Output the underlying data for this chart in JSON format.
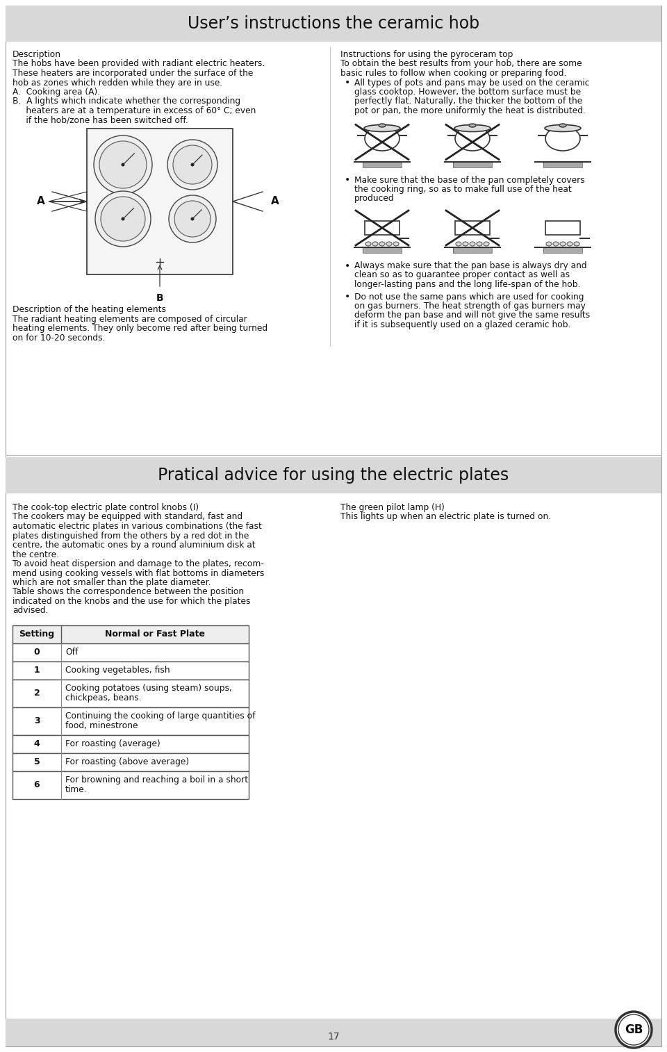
{
  "title1": "User’s instructions the ceramic hob",
  "title2": "Pratical advice for using the electric plates",
  "header_bg": "#d8d8d8",
  "page_bg": "#ffffff",
  "section1_left": {
    "description_title": "Description",
    "description_line1": "The hobs have been provided with radiant electric heaters.",
    "description_line2": "These heaters are incorporated under the surface of the",
    "description_line3": "hob as zones which redden while they are in use.",
    "item_a": "A.  Cooking area (A).",
    "item_b_line1": "B.  A lights which indicate whether the corresponding",
    "item_b_line2": "     heaters are at a temperature in excess of 60° C; even",
    "item_b_line3": "     if the hob/zone has been switched off.",
    "desc_heating_title": "Description of the heating elements",
    "desc_heating_line1": "The radiant heating elements are composed of circular",
    "desc_heating_line2": "heating elements. They only become red after being turned",
    "desc_heating_line3": "on for 10-20 seconds."
  },
  "section1_right": {
    "pyroceram_title": "Instructions for using the pyroceram top",
    "pyroceram_line1": "To obtain the best results from your hob, there are some",
    "pyroceram_line2": "basic rules to follow when cooking or preparing food.",
    "bullet1_line1": "All types of pots and pans may be used on the ceramic",
    "bullet1_line2": "glass cooktop. However, the bottom surface must be",
    "bullet1_line3": "perfectly flat. Naturally, the thicker the bottom of the",
    "bullet1_line4": "pot or pan, the more uniformly the heat is distributed.",
    "bullet2_line1": "Make sure that the base of the pan completely covers",
    "bullet2_line2": "the cooking ring, so as to make full use of the heat",
    "bullet2_line3": "produced",
    "bullet3_line1": "Always make sure that the pan base is always dry and",
    "bullet3_line2": "clean so as to guarantee proper contact as well as",
    "bullet3_line3": "longer-lasting pans and the long life-span of the hob.",
    "bullet4_line1": "Do not use the same pans which are used for cooking",
    "bullet4_line2": "on gas burners. The heat strength of gas burners may",
    "bullet4_line3": "deform the pan base and will not give the same results",
    "bullet4_line4": "if it is subsequently used on a glazed ceramic hob."
  },
  "section2_left": {
    "control_title": "The cook-top electric plate control knobs (I)",
    "control_line1": "The cookers may be equipped with standard, fast and",
    "control_line2": "automatic electric plates in various combinations (the fast",
    "control_line3": "plates distinguished from the others by a red dot in the",
    "control_line4": "centre, the automatic ones by a round aluminium disk at",
    "control_line5": "the centre.",
    "control_line6": "To avoid heat dispersion and damage to the plates, recom-",
    "control_line7": "mend using cooking vessels with flat bottoms in diameters",
    "control_line8": "which are not smaller than the plate diameter.",
    "control_line9": "Table shows the correspondence between the position",
    "control_line10": "indicated on the knobs and the use for which the plates",
    "control_line11": "advised."
  },
  "section2_right": {
    "lamp_title": "The green pilot lamp (H)",
    "lamp_line1": "This lights up when an electric plate is turned on."
  },
  "table_headers": [
    "Setting",
    "Normal or Fast Plate"
  ],
  "table_rows": [
    [
      "0",
      "Off"
    ],
    [
      "1",
      "Cooking vegetables, fish"
    ],
    [
      "2",
      "Cooking potatoes (using steam) soups,\nchickpeas, beans."
    ],
    [
      "3",
      "Continuing the cooking of large quantities of\nfood, minestrone"
    ],
    [
      "4",
      "For roasting (average)"
    ],
    [
      "5",
      "For roasting (above average)"
    ],
    [
      "6",
      "For browning and reaching a boil in a short\ntime."
    ]
  ],
  "page_number": "17",
  "gb_label": "GB"
}
